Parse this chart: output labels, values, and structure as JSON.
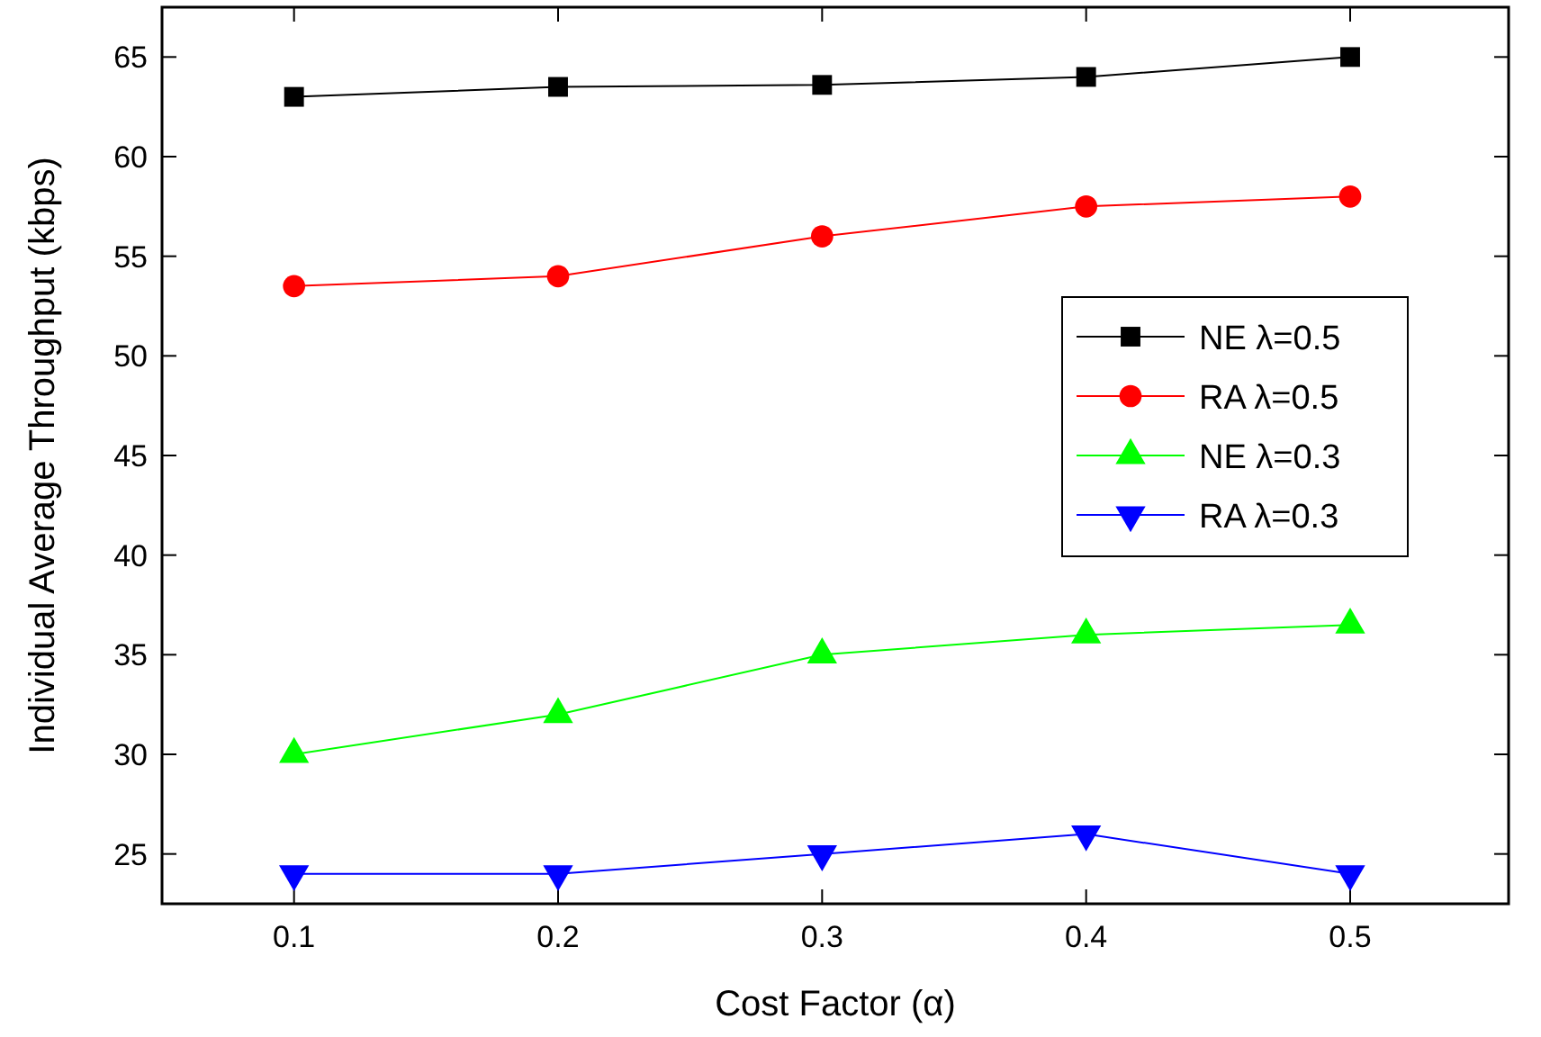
{
  "chart_data": {
    "type": "line",
    "xlabel": "Cost Factor (α)",
    "ylabel": "Individual Average Throughput (kbps)",
    "x": [
      0.1,
      0.2,
      0.3,
      0.4,
      0.5
    ],
    "series": [
      {
        "name": "NE λ=0.5",
        "color": "#000000",
        "marker": "square",
        "values": [
          63,
          63.5,
          63.6,
          64,
          65
        ]
      },
      {
        "name": "RA λ=0.5",
        "color": "#ff0000",
        "marker": "circle",
        "values": [
          53.5,
          54,
          56,
          57.5,
          58
        ]
      },
      {
        "name": "NE λ=0.3",
        "color": "#00ff00",
        "marker": "triangle",
        "values": [
          30,
          32,
          35,
          36,
          36.5
        ]
      },
      {
        "name": "RA λ=0.3",
        "color": "#0000ff",
        "marker": "triangle-down",
        "values": [
          24,
          24,
          25,
          26,
          24
        ]
      }
    ],
    "xlim": [
      0.05,
      0.56
    ],
    "xticks": [
      0.1,
      0.2,
      0.3,
      0.4,
      0.5
    ],
    "ylim": [
      22.5,
      67.5
    ],
    "yticks": [
      25,
      30,
      35,
      40,
      45,
      50,
      55,
      60,
      65
    ],
    "legend": "right",
    "grid": false
  }
}
